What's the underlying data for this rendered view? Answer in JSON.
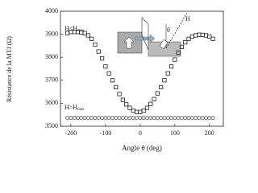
{
  "chart_data": {
    "type": "scatter",
    "x_label": "Angle θ (deg)",
    "y_label": "Résistance de la MTJ (Ω)",
    "x": [
      -210,
      -200,
      -190,
      -180,
      -170,
      -160,
      -150,
      -140,
      -130,
      -120,
      -110,
      -100,
      -90,
      -80,
      -70,
      -60,
      -50,
      -40,
      -30,
      -20,
      -10,
      0,
      10,
      20,
      30,
      40,
      50,
      60,
      70,
      80,
      90,
      100,
      110,
      120,
      130,
      140,
      150,
      160,
      170,
      180,
      190,
      200,
      210
    ],
    "series": [
      {
        "name": "H<Hmax",
        "marker": "square",
        "color": "#222222",
        "values": [
          3905,
          3910,
          3910,
          3910,
          3908,
          3905,
          3895,
          3880,
          3855,
          3825,
          3795,
          3760,
          3730,
          3700,
          3670,
          3640,
          3615,
          3595,
          3580,
          3568,
          3562,
          3562,
          3568,
          3580,
          3597,
          3618,
          3643,
          3670,
          3700,
          3730,
          3760,
          3790,
          3820,
          3845,
          3865,
          3880,
          3890,
          3895,
          3898,
          3897,
          3895,
          3890,
          3880
        ]
      },
      {
        "name": "H>Hmax",
        "marker": "circle",
        "color": "#555555",
        "values": [
          3536,
          3536,
          3536,
          3536,
          3536,
          3536,
          3536,
          3536,
          3536,
          3536,
          3536,
          3536,
          3536,
          3536,
          3536,
          3536,
          3536,
          3536,
          3536,
          3536,
          3536,
          3536,
          3536,
          3536,
          3536,
          3536,
          3536,
          3536,
          3536,
          3536,
          3536,
          3536,
          3536,
          3536,
          3536,
          3536,
          3536,
          3536,
          3536,
          3536,
          3536,
          3536,
          3536
        ]
      }
    ],
    "annotations": [
      {
        "main": "H<H",
        "sub": "max"
      },
      {
        "main": "H>H",
        "sub": "max"
      }
    ],
    "inset_labels": [
      "H",
      "θ"
    ],
    "xlim": [
      -230,
      240
    ],
    "xticks": [
      -200,
      -100,
      0,
      100,
      200
    ],
    "ylim": [
      3500,
      4000
    ],
    "yticks": [
      3500,
      3600,
      3700,
      3800,
      3900,
      4000
    ]
  }
}
